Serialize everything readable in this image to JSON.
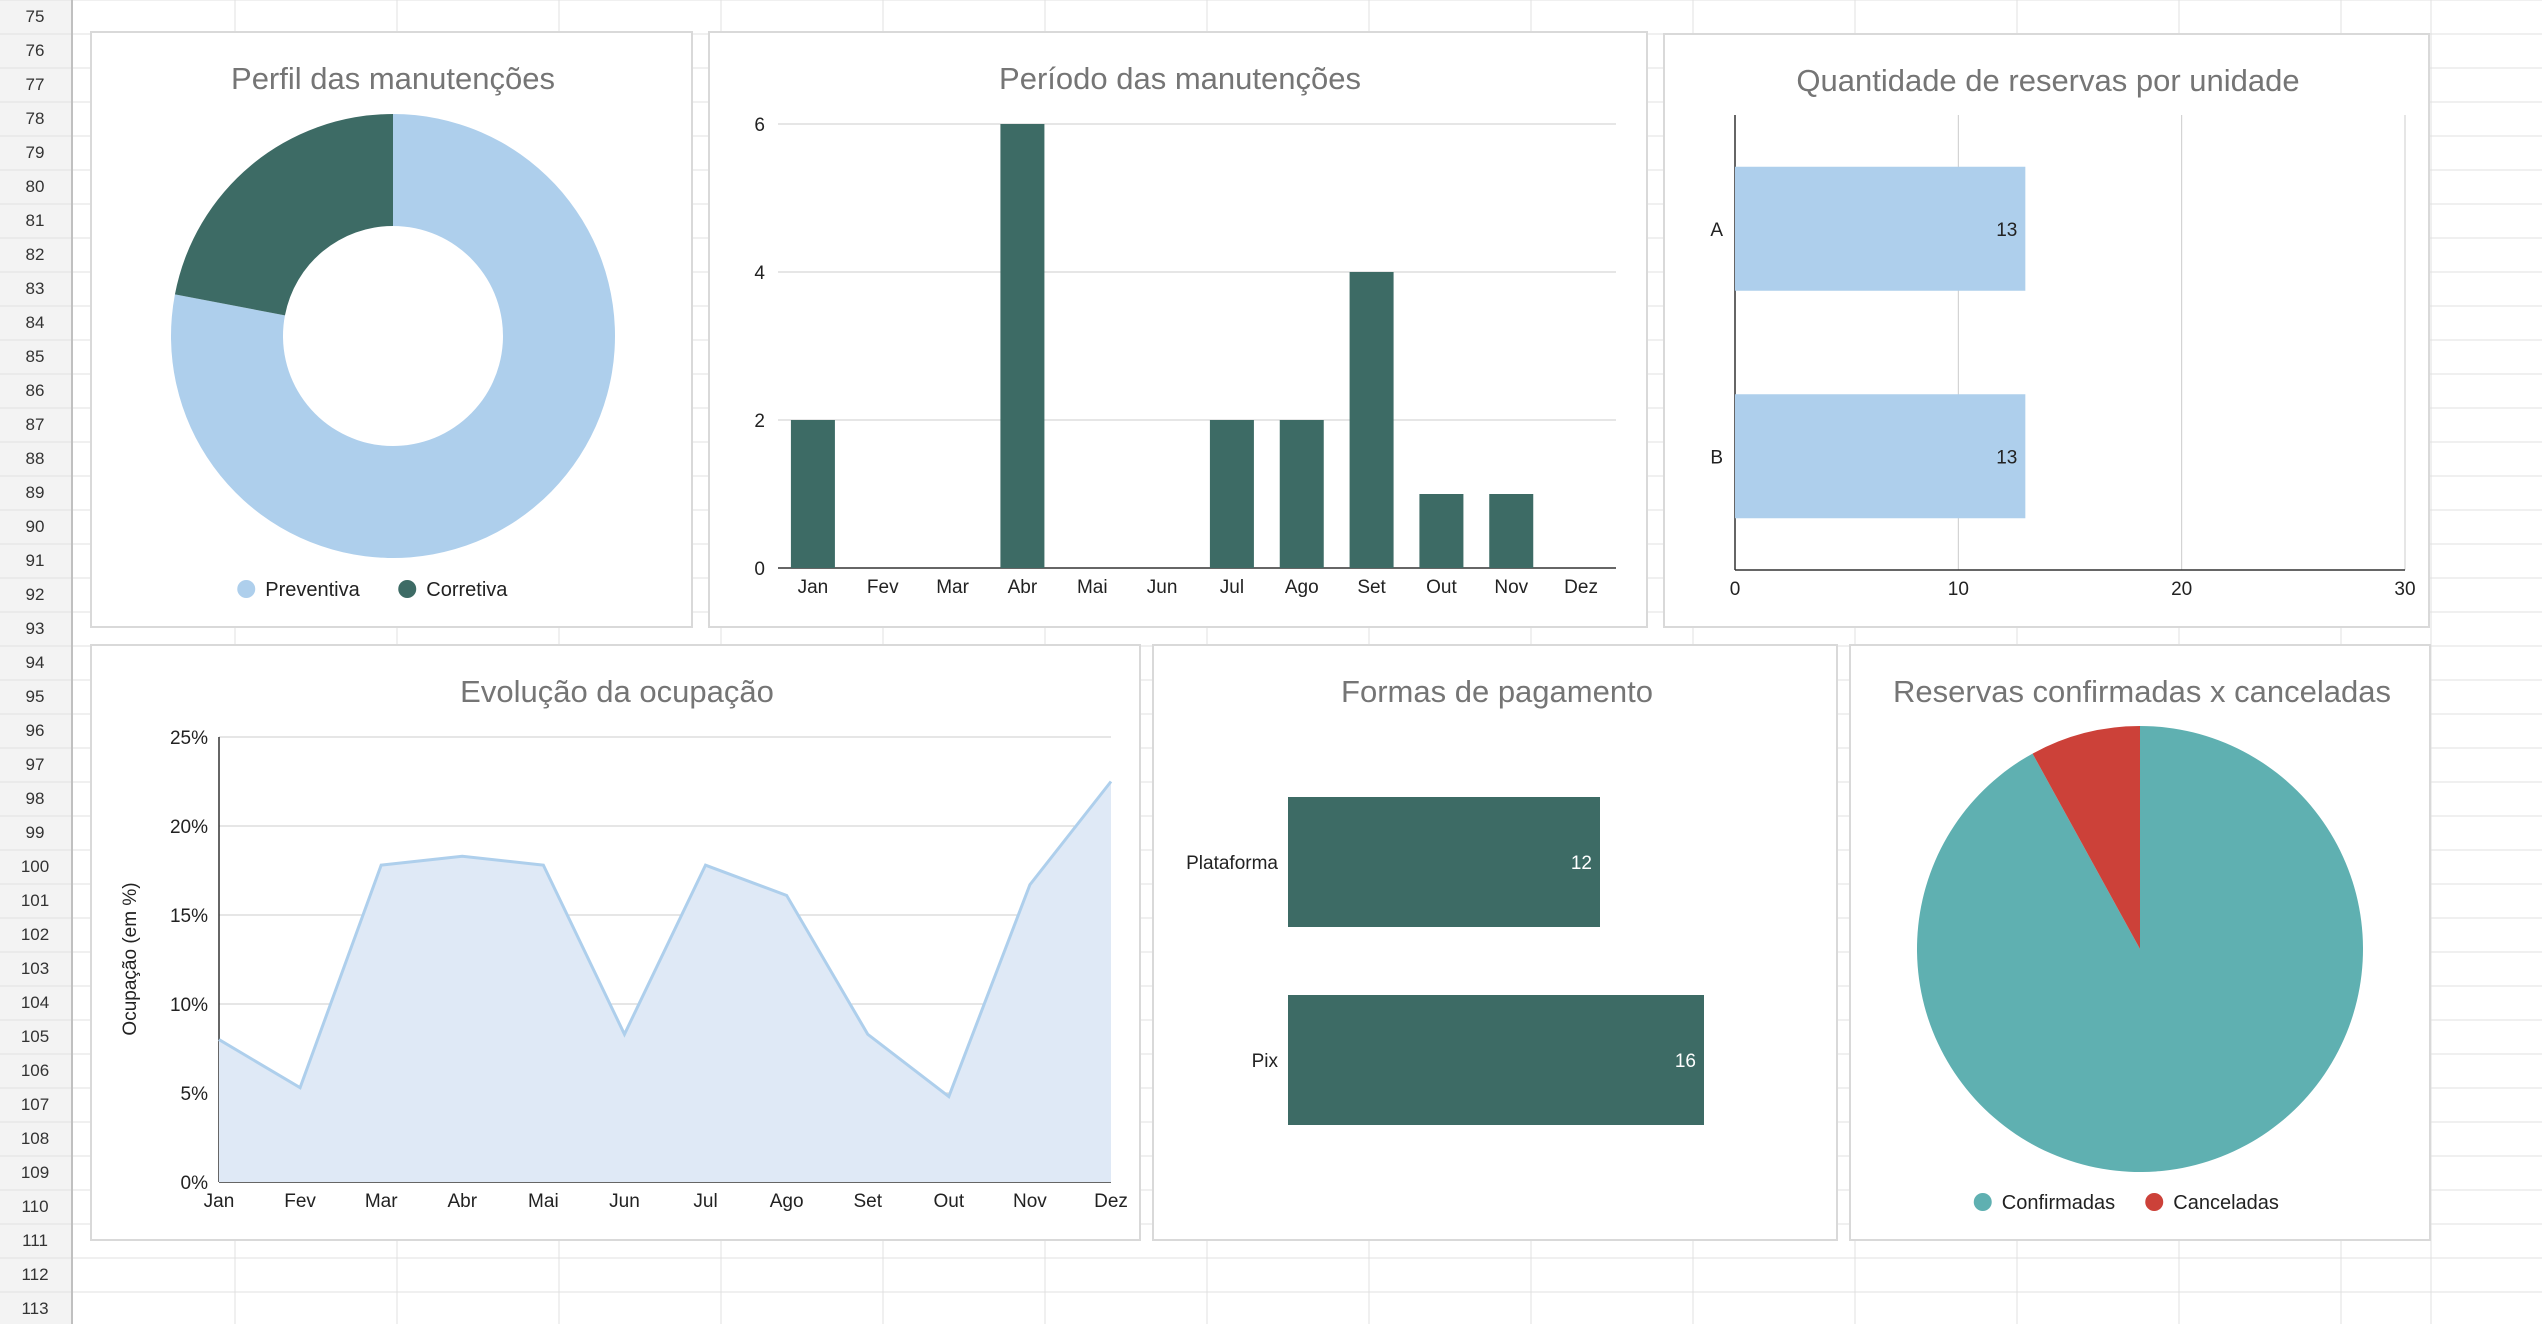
{
  "spreadsheet": {
    "row_numbers": [
      "75",
      "76",
      "77",
      "78",
      "79",
      "80",
      "81",
      "82",
      "83",
      "84",
      "85",
      "86",
      "87",
      "88",
      "89",
      "90",
      "91",
      "92",
      "93",
      "94",
      "95",
      "96",
      "97",
      "98",
      "99",
      "100",
      "101",
      "102",
      "103",
      "104",
      "105",
      "106",
      "107",
      "108",
      "109",
      "110",
      "111",
      "112",
      "113"
    ]
  },
  "colors": {
    "dark_green": "#3d6b65",
    "light_blue": "#aecfec",
    "area_fill": "#dfe9f6",
    "teal": "#5fb0b1",
    "red": "#cc4139"
  },
  "chart_data": [
    {
      "id": "perfil",
      "type": "pie",
      "donut": true,
      "title": "Perfil das manutenções",
      "slices": [
        {
          "name": "Preventiva",
          "value": 78,
          "color": "#aecfec"
        },
        {
          "name": "Corretiva",
          "value": 22,
          "color": "#3d6b65"
        }
      ],
      "legend": "bottom"
    },
    {
      "id": "periodo",
      "type": "bar",
      "title": "Período das manutenções",
      "categories": [
        "Jan",
        "Fev",
        "Mar",
        "Abr",
        "Mai",
        "Jun",
        "Jul",
        "Ago",
        "Set",
        "Out",
        "Nov",
        "Dez"
      ],
      "values": [
        2,
        0,
        0,
        6,
        0,
        0,
        2,
        2,
        4,
        1,
        1,
        0
      ],
      "ylim": [
        0,
        6
      ],
      "yticks": [
        "0",
        "2",
        "4",
        "6"
      ],
      "color": "#3d6b65",
      "grid": true
    },
    {
      "id": "reservas_unidade",
      "type": "bar",
      "orientation": "horizontal",
      "title": "Quantidade de reservas por unidade",
      "categories": [
        "A",
        "B"
      ],
      "values": [
        13,
        13
      ],
      "data_labels": [
        "13",
        "13"
      ],
      "xlim": [
        0,
        30
      ],
      "xticks": [
        "0",
        "10",
        "20",
        "30"
      ],
      "color": "#aecfec",
      "grid": true
    },
    {
      "id": "ocupacao",
      "type": "area",
      "title": "Evolução da ocupação",
      "ylabel": "Ocupação (em %)",
      "categories": [
        "Jan",
        "Fev",
        "Mar",
        "Abr",
        "Mai",
        "Jun",
        "Jul",
        "Ago",
        "Set",
        "Out",
        "Nov",
        "Dez"
      ],
      "values": [
        8.0,
        5.3,
        17.8,
        18.3,
        17.8,
        8.3,
        17.8,
        16.1,
        8.3,
        4.8,
        16.7,
        22.5
      ],
      "ylim": [
        0,
        25
      ],
      "yticks": [
        "0%",
        "5%",
        "10%",
        "15%",
        "20%",
        "25%"
      ],
      "line_color": "#aecfec",
      "fill_color": "#dfe9f6",
      "grid": true
    },
    {
      "id": "pagamento",
      "type": "bar",
      "orientation": "horizontal",
      "title": "Formas de pagamento",
      "categories": [
        "Plataforma",
        "Pix"
      ],
      "values": [
        12,
        16
      ],
      "data_labels": [
        "12",
        "16"
      ],
      "xlim": [
        0,
        16
      ],
      "color": "#3d6b65"
    },
    {
      "id": "confirmadas",
      "type": "pie",
      "title": "Reservas confirmadas x canceladas",
      "slices": [
        {
          "name": "Confirmadas",
          "value": 92,
          "color": "#5fb0b1"
        },
        {
          "name": "Canceladas",
          "value": 8,
          "color": "#cc4139"
        }
      ],
      "legend": "bottom"
    }
  ]
}
